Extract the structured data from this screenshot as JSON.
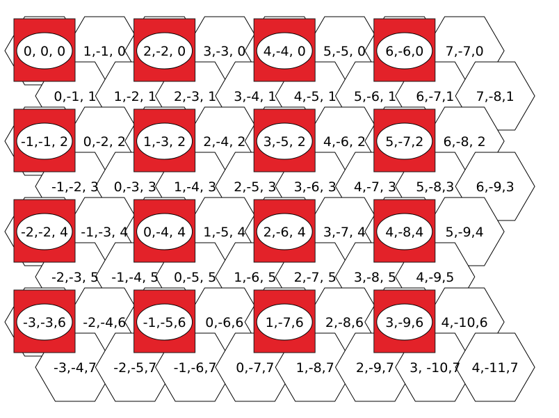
{
  "colors": {
    "marker": "#e32229",
    "background": "#ffffff",
    "outline": "#000000"
  },
  "rows": [
    {
      "cells": [
        {
          "label": "0, 0, 0",
          "marked": true
        },
        {
          "label": "1,-1, 0",
          "marked": false
        },
        {
          "label": "2,-2, 0",
          "marked": true
        },
        {
          "label": "3,-3, 0",
          "marked": false
        },
        {
          "label": "4,-4, 0",
          "marked": true
        },
        {
          "label": "5,-5, 0",
          "marked": false
        },
        {
          "label": "6,-6,0",
          "marked": true
        },
        {
          "label": "7,-7,0",
          "marked": false
        }
      ]
    },
    {
      "cells": [
        {
          "label": "0,-1, 1",
          "marked": false
        },
        {
          "label": "1,-2, 1",
          "marked": false
        },
        {
          "label": "2,-3, 1",
          "marked": false
        },
        {
          "label": "3,-4, 1",
          "marked": false
        },
        {
          "label": "4,-5, 1",
          "marked": false
        },
        {
          "label": "5,-6, 1",
          "marked": false
        },
        {
          "label": "6,-7,1",
          "marked": false
        },
        {
          "label": "7,-8,1",
          "marked": false
        }
      ]
    },
    {
      "cells": [
        {
          "label": "-1,-1, 2",
          "marked": true
        },
        {
          "label": "0,-2, 2",
          "marked": false
        },
        {
          "label": "1,-3, 2",
          "marked": true
        },
        {
          "label": "2,-4, 2",
          "marked": false
        },
        {
          "label": "3,-5, 2",
          "marked": true
        },
        {
          "label": "4,-6, 2",
          "marked": false
        },
        {
          "label": "5,-7,2",
          "marked": true
        },
        {
          "label": "6,-8, 2",
          "marked": false
        }
      ]
    },
    {
      "cells": [
        {
          "label": "-1,-2, 3",
          "marked": false
        },
        {
          "label": "0,-3, 3",
          "marked": false
        },
        {
          "label": "1,-4, 3",
          "marked": false
        },
        {
          "label": "2,-5, 3",
          "marked": false
        },
        {
          "label": "3,-6, 3",
          "marked": false
        },
        {
          "label": "4,-7, 3",
          "marked": false
        },
        {
          "label": "5,-8,3",
          "marked": false
        },
        {
          "label": "6,-9,3",
          "marked": false
        }
      ]
    },
    {
      "cells": [
        {
          "label": "-2,-2, 4",
          "marked": true
        },
        {
          "label": "-1,-3, 4",
          "marked": false
        },
        {
          "label": "0,-4, 4",
          "marked": true
        },
        {
          "label": "1,-5, 4",
          "marked": false
        },
        {
          "label": "2,-6, 4",
          "marked": true
        },
        {
          "label": "3,-7, 4",
          "marked": false
        },
        {
          "label": "4,-8,4",
          "marked": true
        },
        {
          "label": "5,-9,4",
          "marked": false
        }
      ]
    },
    {
      "cells": [
        {
          "label": "-2,-3, 5",
          "marked": false
        },
        {
          "label": "-1,-4, 5",
          "marked": false
        },
        {
          "label": "0,-5, 5",
          "marked": false
        },
        {
          "label": "1,-6, 5",
          "marked": false
        },
        {
          "label": "2,-7, 5",
          "marked": false
        },
        {
          "label": "3,-8, 5",
          "marked": false
        },
        {
          "label": "4,-9,5",
          "marked": false
        }
      ]
    },
    {
      "cells": [
        {
          "label": "-3,-3,6",
          "marked": true
        },
        {
          "label": "-2,-4,6",
          "marked": false
        },
        {
          "label": "-1,-5,6",
          "marked": true
        },
        {
          "label": "0,-6,6",
          "marked": false
        },
        {
          "label": "1,-7,6",
          "marked": true
        },
        {
          "label": "2,-8,6",
          "marked": false
        },
        {
          "label": "3,-9,6",
          "marked": true
        },
        {
          "label": "4,-10,6",
          "marked": false
        }
      ]
    },
    {
      "cells": [
        {
          "label": "-3,-4,7",
          "marked": false
        },
        {
          "label": "-2,-5,7",
          "marked": false
        },
        {
          "label": "-1,-6,7",
          "marked": false
        },
        {
          "label": "0,-7,7",
          "marked": false
        },
        {
          "label": "1,-8,7",
          "marked": false
        },
        {
          "label": "2,-9,7",
          "marked": false
        },
        {
          "label": "3, -10,7",
          "marked": false
        },
        {
          "label": "4,-11,7",
          "marked": false
        }
      ]
    }
  ]
}
